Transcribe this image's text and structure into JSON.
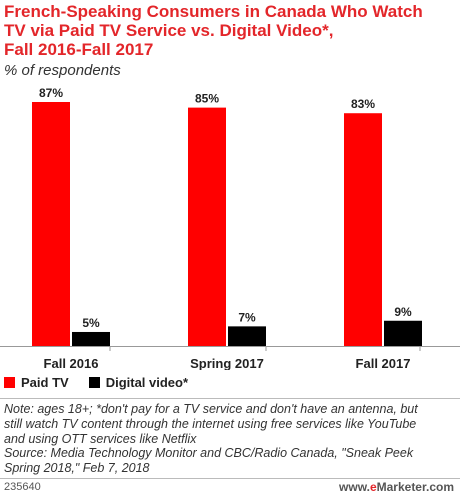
{
  "title_lines": [
    "French-Speaking Consumers in Canada Who Watch",
    "TV via Paid TV Service vs. Digital Video*,",
    "Fall 2016-Fall 2017"
  ],
  "subtitle": "% of respondents",
  "colors": {
    "accent": "#e3262a",
    "paid_tv": "#ff0000",
    "digital_video": "#000000",
    "text": "#222222"
  },
  "chart_data": {
    "type": "bar",
    "categories": [
      "Fall 2016",
      "Spring 2017",
      "Fall 2017"
    ],
    "series": [
      {
        "name": "Paid TV",
        "values": [
          87,
          85,
          83
        ],
        "labels": [
          "87%",
          "85%",
          "83%"
        ]
      },
      {
        "name": "Digital video*",
        "values": [
          5,
          7,
          9
        ],
        "labels": [
          "5%",
          "7%",
          "9%"
        ]
      }
    ],
    "ylim": [
      0,
      87
    ],
    "grid": false,
    "legend": "bottom-left"
  },
  "legend": {
    "paid_tv": "Paid TV",
    "digital_video": "Digital video*"
  },
  "notes": [
    "Note: ages 18+; *don't pay for a TV service and don't have an antenna, but",
    "still watch TV content through the internet using free services like YouTube",
    "and using OTT services like Netflix",
    "Source: Media Technology Monitor and CBC/Radio Canada, \"Sneak Peek",
    "Spring 2018,\" Feb 7, 2018"
  ],
  "footer": {
    "id": "235640",
    "brand_prefix": "www.",
    "brand_e": "e",
    "brand_rest": "Marketer.com"
  }
}
